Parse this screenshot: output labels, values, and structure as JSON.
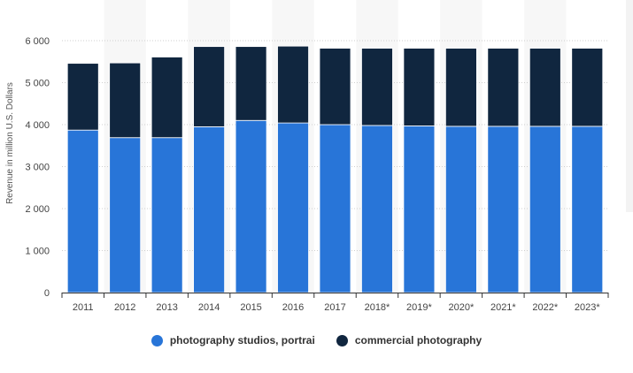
{
  "chart_data": {
    "type": "bar",
    "stacked": true,
    "categories": [
      "2011",
      "2012",
      "2013",
      "2014",
      "2015",
      "2016",
      "2017",
      "2018*",
      "2019*",
      "2020*",
      "2021*",
      "2022*",
      "2023*"
    ],
    "series": [
      {
        "name": "photography studios, portrai",
        "color": "#2875d8",
        "values": [
          3870,
          3690,
          3690,
          3950,
          4100,
          4040,
          4000,
          3980,
          3970,
          3960,
          3960,
          3960,
          3960
        ]
      },
      {
        "name": "commercial photography",
        "color": "#10263f",
        "values": [
          1590,
          1780,
          1920,
          1910,
          1760,
          1830,
          1820,
          1840,
          1850,
          1860,
          1860,
          1860,
          1860
        ]
      }
    ],
    "ylabel": "Revenue in million U.S. Dollars",
    "xlabel": "",
    "ylim": [
      0,
      6000
    ],
    "yticks": [
      0,
      1000,
      2000,
      3000,
      4000,
      5000,
      6000
    ],
    "ytick_labels": [
      "0",
      "1 000",
      "2 000",
      "3 000",
      "4 000",
      "5 000",
      "6 000"
    ],
    "grid": true,
    "legend_position": "bottom"
  }
}
